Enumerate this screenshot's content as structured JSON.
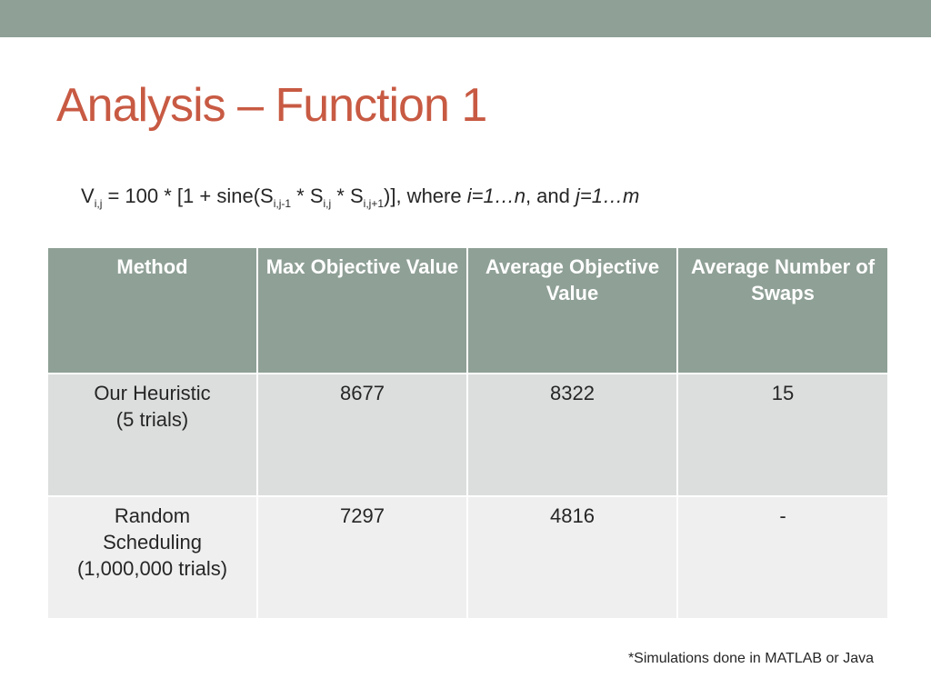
{
  "slide": {
    "title": "Analysis – Function 1",
    "formula": {
      "p1": "V",
      "s1": "i,j",
      "p2": " = 100 * [1 + sine(S",
      "s2": "i,j-1",
      "p3": " * S",
      "s3": "i,j",
      "p4": " * S",
      "s4": "i,j+1",
      "p5": ")], where ",
      "i_range": "i=1…n",
      "p6": ", and ",
      "j_range": "j=1…m"
    },
    "footnote": "*Simulations done in MATLAB or Java"
  },
  "table": {
    "headers": [
      "Method",
      "Max Objective Value",
      "Average Objective Value",
      "Average Number of Swaps"
    ],
    "rows": [
      {
        "method_line1": "Our Heuristic",
        "method_line2": "(5 trials)",
        "method_line3": "",
        "max": "8677",
        "avg": "8322",
        "swaps": "15"
      },
      {
        "method_line1": "Random",
        "method_line2": "Scheduling",
        "method_line3": "(1,000,000 trials)",
        "max": "7297",
        "avg": "4816",
        "swaps": "-"
      }
    ]
  },
  "colors": {
    "accent_bar": "#8fa096",
    "title": "#c85a43",
    "header_bg": "#8fa096",
    "row1_bg": "#dcdedd",
    "row2_bg": "#eeefee"
  }
}
